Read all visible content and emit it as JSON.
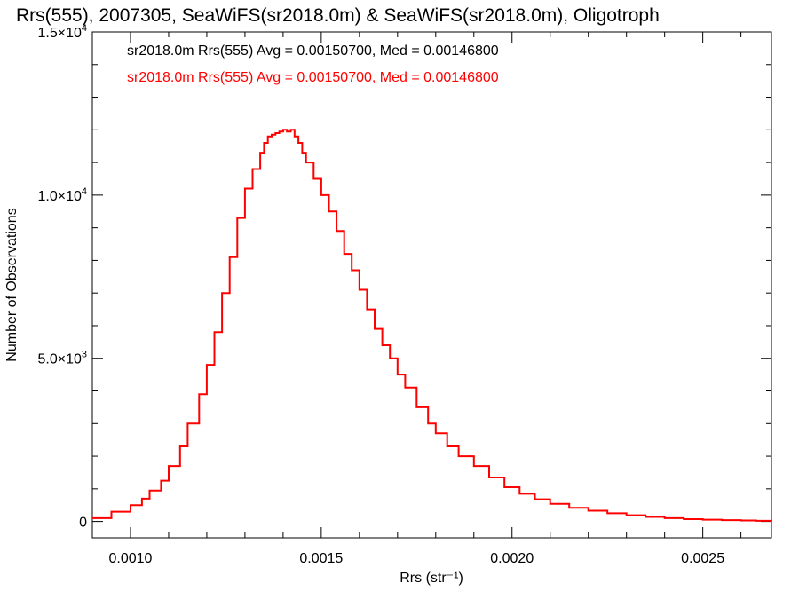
{
  "chart_data": {
    "type": "line",
    "title": "Rrs(555), 2007305, SeaWiFS(sr2018.0m) & SeaWiFS(sr2018.0m), Oligotroph",
    "xlabel": "Rrs (str⁻¹)",
    "ylabel": "Number of Observations",
    "xlim": [
      0.0009,
      0.00268
    ],
    "ylim": [
      -500,
      15000
    ],
    "x_ticks": [
      {
        "value": 0.001,
        "label": "0.0010"
      },
      {
        "value": 0.0015,
        "label": "0.0015"
      },
      {
        "value": 0.002,
        "label": "0.0020"
      },
      {
        "value": 0.0025,
        "label": "0.0025"
      }
    ],
    "y_ticks": [
      {
        "value": 0,
        "mantissa": "0",
        "exponent": ""
      },
      {
        "value": 5000,
        "mantissa": "5.0×10",
        "exponent": "3"
      },
      {
        "value": 10000,
        "mantissa": "1.0×10",
        "exponent": "4"
      },
      {
        "value": 15000,
        "mantissa": "1.5×10",
        "exponent": "4"
      }
    ],
    "grid": false,
    "legend_position": "top-left",
    "annotations": [
      {
        "text": "sr2018.0m Rrs(555) Avg = 0.00150700, Med = 0.00146800",
        "color": "#000000"
      },
      {
        "text": "sr2018.0m Rrs(555) Avg = 0.00150700, Med = 0.00146800",
        "color": "#ff0000"
      }
    ],
    "series": [
      {
        "color": "#ff0000",
        "style": "step",
        "x": [
          0.0009,
          0.00095,
          0.001,
          0.00103,
          0.00105,
          0.00108,
          0.0011,
          0.00113,
          0.00115,
          0.00118,
          0.0012,
          0.00122,
          0.00124,
          0.00126,
          0.00128,
          0.0013,
          0.00132,
          0.00134,
          0.00135,
          0.00136,
          0.00137,
          0.00138,
          0.00139,
          0.0014,
          0.00141,
          0.00142,
          0.00143,
          0.00144,
          0.00145,
          0.00146,
          0.00148,
          0.0015,
          0.00152,
          0.00154,
          0.00156,
          0.00158,
          0.0016,
          0.00162,
          0.00164,
          0.00166,
          0.00168,
          0.0017,
          0.00172,
          0.00175,
          0.00178,
          0.0018,
          0.00183,
          0.00186,
          0.0019,
          0.00194,
          0.00198,
          0.00202,
          0.00206,
          0.0021,
          0.00215,
          0.0022,
          0.00225,
          0.0023,
          0.00235,
          0.0024,
          0.00245,
          0.0025,
          0.00255,
          0.0026,
          0.00264,
          0.00268
        ],
        "y": [
          100,
          300,
          500,
          700,
          950,
          1250,
          1700,
          2300,
          3000,
          3900,
          4800,
          5800,
          7000,
          8100,
          9300,
          10200,
          10800,
          11300,
          11600,
          11800,
          11850,
          11900,
          11950,
          12000,
          11950,
          12000,
          11800,
          11600,
          11300,
          11000,
          10500,
          10000,
          9500,
          8900,
          8200,
          7700,
          7100,
          6500,
          5900,
          5400,
          5000,
          4500,
          4100,
          3500,
          3000,
          2700,
          2300,
          2000,
          1700,
          1350,
          1050,
          850,
          680,
          540,
          420,
          330,
          250,
          190,
          140,
          100,
          70,
          55,
          40,
          30,
          20,
          15
        ]
      }
    ]
  }
}
